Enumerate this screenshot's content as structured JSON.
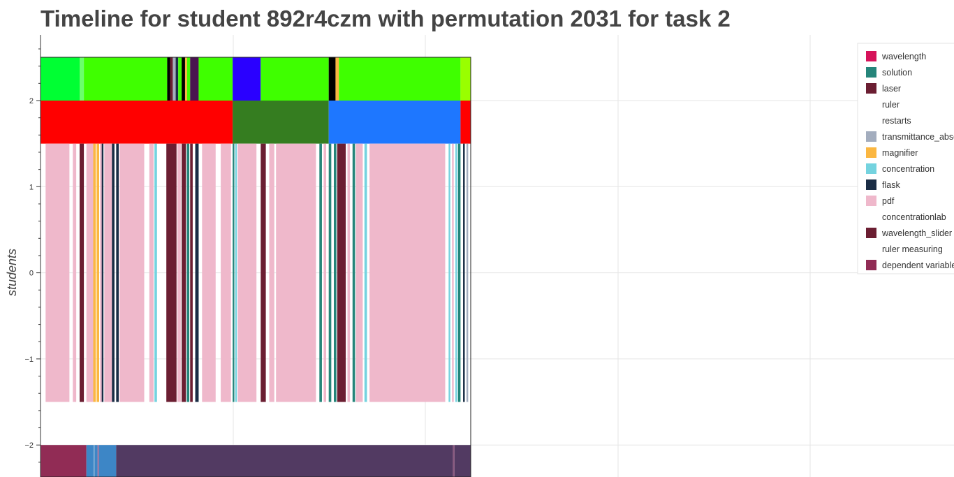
{
  "chart_data": {
    "type": "timeline",
    "title": "Timeline for student 892r4czm with permutation 2031 for task 2",
    "xlabel": "",
    "ylabel": "students",
    "x_range": [
      0,
      25.3
    ],
    "y_range": [
      -2.38,
      2.72
    ],
    "yticks": [
      {
        "value": 2,
        "label": "2"
      },
      {
        "value": 1,
        "label": "1"
      },
      {
        "value": 0,
        "label": "0"
      },
      {
        "value": -1,
        "label": "−1"
      },
      {
        "value": -2,
        "label": "−2"
      }
    ],
    "grid": true,
    "legend_position": "top-right",
    "legend": [
      {
        "label": "wavelength",
        "color": "#d6135a"
      },
      {
        "label": "solution",
        "color": "#25857a"
      },
      {
        "label": "laser",
        "color": "#6b1e32"
      },
      {
        "label": "ruler",
        "color": "#ffffff"
      },
      {
        "label": "restarts",
        "color": "#ffffff"
      },
      {
        "label": "transmittance_absorbance",
        "color": "#a3adbe"
      },
      {
        "label": "magnifier",
        "color": "#fbb741"
      },
      {
        "label": "concentration",
        "color": "#74d3df"
      },
      {
        "label": "flask",
        "color": "#1a2d45"
      },
      {
        "label": "pdf",
        "color": "#efb8cb"
      },
      {
        "label": "concentrationlab",
        "color": "#ffffff"
      },
      {
        "label": "wavelength_slider",
        "color": "#6b1e32"
      },
      {
        "label": "ruler measuring",
        "color": "#ffffff"
      },
      {
        "label": "dependent variable",
        "color": "#912c55"
      }
    ],
    "rows": [
      {
        "name": "top",
        "y0": 2.0,
        "y1": 2.5,
        "segments": [
          {
            "x0": 0.0,
            "x1": 2.3,
            "color": "#00ff33"
          },
          {
            "x0": 2.3,
            "x1": 2.55,
            "color": "#6bff6b"
          },
          {
            "x0": 2.55,
            "x1": 7.45,
            "color": "#3fff00"
          },
          {
            "x0": 7.45,
            "x1": 7.62,
            "color": "#000000"
          },
          {
            "x0": 7.62,
            "x1": 7.78,
            "color": "#6b1e32"
          },
          {
            "x0": 7.78,
            "x1": 7.95,
            "color": "#a3adbe"
          },
          {
            "x0": 7.95,
            "x1": 8.1,
            "color": "#1a2d45"
          },
          {
            "x0": 8.1,
            "x1": 8.3,
            "color": "#3fff00"
          },
          {
            "x0": 8.3,
            "x1": 8.5,
            "color": "#000000"
          },
          {
            "x0": 8.5,
            "x1": 8.62,
            "color": "#fbb741"
          },
          {
            "x0": 8.62,
            "x1": 8.8,
            "color": "#3fff00"
          },
          {
            "x0": 8.8,
            "x1": 9.3,
            "color": "#4a1450"
          },
          {
            "x0": 9.3,
            "x1": 11.3,
            "color": "#3fff00"
          },
          {
            "x0": 11.3,
            "x1": 12.95,
            "color": "#2a00ff"
          },
          {
            "x0": 12.95,
            "x1": 16.95,
            "color": "#3fff00"
          },
          {
            "x0": 16.95,
            "x1": 17.35,
            "color": "#000000"
          },
          {
            "x0": 17.35,
            "x1": 17.55,
            "color": "#fbb741"
          },
          {
            "x0": 17.55,
            "x1": 24.7,
            "color": "#3fff00"
          },
          {
            "x0": 24.7,
            "x1": 25.3,
            "color": "#99ff00"
          }
        ]
      },
      {
        "name": "middle",
        "y0": 1.5,
        "y1": 2.0,
        "segments": [
          {
            "x0": 0.0,
            "x1": 11.3,
            "color": "#ff0000"
          },
          {
            "x0": 11.3,
            "x1": 16.95,
            "color": "#357d20"
          },
          {
            "x0": 16.95,
            "x1": 24.7,
            "color": "#1e77ff"
          },
          {
            "x0": 24.7,
            "x1": 25.3,
            "color": "#ff0000"
          }
        ]
      },
      {
        "name": "events",
        "y0": -1.5,
        "y1": 1.5,
        "segments": [
          {
            "x0": 0.3,
            "x1": 1.7,
            "color": "#efb8cb"
          },
          {
            "x0": 1.9,
            "x1": 2.1,
            "color": "#efb8cb"
          },
          {
            "x0": 2.3,
            "x1": 2.55,
            "color": "#6b1e32"
          },
          {
            "x0": 2.7,
            "x1": 3.1,
            "color": "#efb8cb"
          },
          {
            "x0": 3.1,
            "x1": 3.25,
            "color": "#fbb741"
          },
          {
            "x0": 3.3,
            "x1": 3.45,
            "color": "#fbb741"
          },
          {
            "x0": 3.5,
            "x1": 3.6,
            "color": "#efb8cb"
          },
          {
            "x0": 3.6,
            "x1": 3.7,
            "color": "#1a2d45"
          },
          {
            "x0": 3.75,
            "x1": 4.2,
            "color": "#efb8cb"
          },
          {
            "x0": 4.2,
            "x1": 4.35,
            "color": "#1a2d45"
          },
          {
            "x0": 4.45,
            "x1": 4.6,
            "color": "#1a2d45"
          },
          {
            "x0": 4.65,
            "x1": 6.1,
            "color": "#efb8cb"
          },
          {
            "x0": 6.4,
            "x1": 6.65,
            "color": "#efb8cb"
          },
          {
            "x0": 6.7,
            "x1": 6.85,
            "color": "#74d3df"
          },
          {
            "x0": 7.4,
            "x1": 8.0,
            "color": "#6b1e32"
          },
          {
            "x0": 8.05,
            "x1": 8.25,
            "color": "#efb8cb"
          },
          {
            "x0": 8.3,
            "x1": 8.55,
            "color": "#6b1e32"
          },
          {
            "x0": 8.6,
            "x1": 8.75,
            "color": "#25857a"
          },
          {
            "x0": 8.8,
            "x1": 8.95,
            "color": "#6b1e32"
          },
          {
            "x0": 9.1,
            "x1": 9.3,
            "color": "#1a2d45"
          },
          {
            "x0": 9.5,
            "x1": 10.3,
            "color": "#efb8cb"
          },
          {
            "x0": 10.6,
            "x1": 11.2,
            "color": "#efb8cb"
          },
          {
            "x0": 11.3,
            "x1": 11.4,
            "color": "#25857a"
          },
          {
            "x0": 11.45,
            "x1": 11.55,
            "color": "#74d3df"
          },
          {
            "x0": 11.6,
            "x1": 12.7,
            "color": "#efb8cb"
          },
          {
            "x0": 12.95,
            "x1": 13.25,
            "color": "#6b1e32"
          },
          {
            "x0": 13.45,
            "x1": 13.75,
            "color": "#efb8cb"
          },
          {
            "x0": 13.85,
            "x1": 16.2,
            "color": "#efb8cb"
          },
          {
            "x0": 16.4,
            "x1": 16.55,
            "color": "#25857a"
          },
          {
            "x0": 16.65,
            "x1": 16.8,
            "color": "#efb8cb"
          },
          {
            "x0": 16.95,
            "x1": 17.1,
            "color": "#25857a"
          },
          {
            "x0": 17.25,
            "x1": 17.4,
            "color": "#25857a"
          },
          {
            "x0": 17.45,
            "x1": 17.95,
            "color": "#6b1e32"
          },
          {
            "x0": 18.05,
            "x1": 18.2,
            "color": "#efb8cb"
          },
          {
            "x0": 18.35,
            "x1": 18.5,
            "color": "#25857a"
          },
          {
            "x0": 18.55,
            "x1": 18.95,
            "color": "#efb8cb"
          },
          {
            "x0": 19.05,
            "x1": 19.2,
            "color": "#74d3df"
          },
          {
            "x0": 19.35,
            "x1": 23.8,
            "color": "#efb8cb"
          },
          {
            "x0": 24.0,
            "x1": 24.1,
            "color": "#74d3df"
          },
          {
            "x0": 24.2,
            "x1": 24.3,
            "color": "#efb8cb"
          },
          {
            "x0": 24.4,
            "x1": 24.5,
            "color": "#74d3df"
          },
          {
            "x0": 24.55,
            "x1": 24.7,
            "color": "#25857a"
          },
          {
            "x0": 24.85,
            "x1": 24.95,
            "color": "#1a2d45"
          },
          {
            "x0": 25.05,
            "x1": 25.15,
            "color": "#a3adbe"
          }
        ]
      },
      {
        "name": "bottom",
        "y0": -2.38,
        "y1": -2.0,
        "segments": [
          {
            "x0": 0.0,
            "x1": 2.7,
            "color": "#912c55"
          },
          {
            "x0": 2.7,
            "x1": 3.1,
            "color": "#3d86c6"
          },
          {
            "x0": 3.1,
            "x1": 3.2,
            "color": "#6aa0d0"
          },
          {
            "x0": 3.2,
            "x1": 3.35,
            "color": "#3d86c6"
          },
          {
            "x0": 3.35,
            "x1": 3.45,
            "color": "#9a7aa6"
          },
          {
            "x0": 3.45,
            "x1": 4.45,
            "color": "#3d86c6"
          },
          {
            "x0": 4.45,
            "x1": 24.25,
            "color": "#523a62"
          },
          {
            "x0": 24.25,
            "x1": 24.35,
            "color": "#8a5a80"
          },
          {
            "x0": 24.35,
            "x1": 25.3,
            "color": "#523a62"
          }
        ]
      }
    ]
  }
}
